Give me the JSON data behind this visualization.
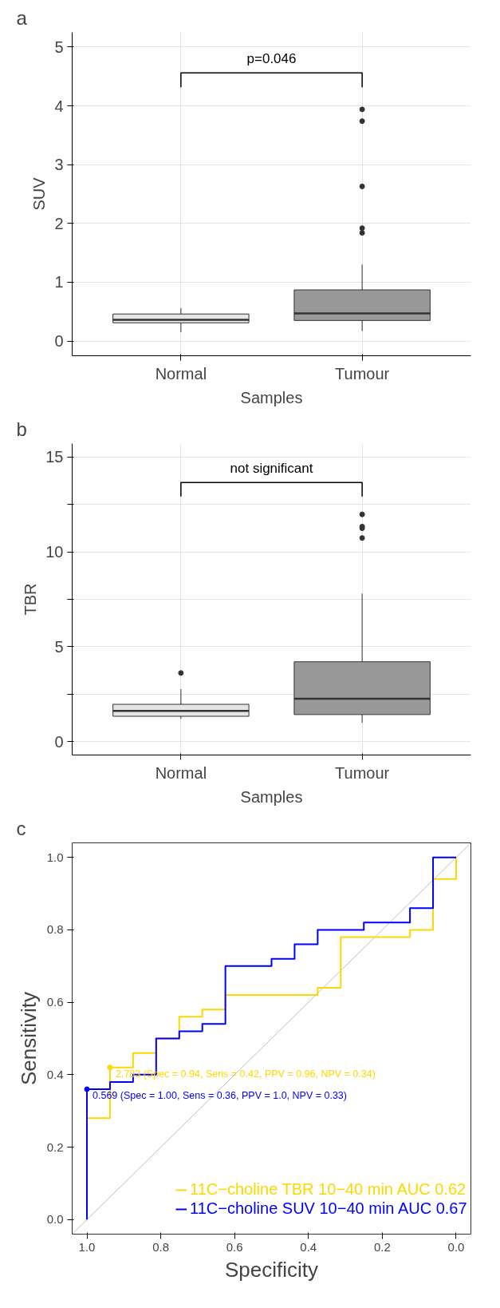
{
  "chart_data": [
    {
      "type": "box",
      "title": "a",
      "xlabel": "Samples",
      "ylabel": "SUV",
      "categories": [
        "Normal",
        "Tumour"
      ],
      "colors": [
        "#e5e5e5",
        "#999999"
      ],
      "boxes": [
        {
          "low": 0.15,
          "q1": 0.31,
          "median": 0.36,
          "q3": 0.46,
          "high": 0.56
        },
        {
          "low": 0.17,
          "q1": 0.35,
          "median": 0.47,
          "q3": 0.87,
          "high": 1.3,
          "outliers": [
            1.84,
            1.92,
            2.63,
            3.74,
            3.94
          ]
        }
      ],
      "ylim": [
        -0.25,
        5.25
      ],
      "yticks": [
        0,
        1,
        2,
        3,
        4,
        5
      ],
      "grid": true,
      "annotations": [
        "p=0.046"
      ]
    },
    {
      "type": "box",
      "title": "b",
      "xlabel": "Samples",
      "ylabel": "TBR",
      "categories": [
        "Normal",
        "Tumour"
      ],
      "colors": [
        "#e5e5e5",
        "#999999"
      ],
      "boxes": [
        {
          "low": 1.21,
          "q1": 1.34,
          "median": 1.62,
          "q3": 1.97,
          "high": 2.77,
          "outliers": [
            3.62
          ]
        },
        {
          "low": 1.0,
          "q1": 1.43,
          "median": 2.26,
          "q3": 4.21,
          "high": 7.8,
          "outliers": [
            10.73,
            11.24,
            11.33,
            11.97
          ]
        }
      ],
      "ylim": [
        -0.7,
        15.7
      ],
      "yticks": [
        0,
        {
          "value": 2.5,
          "label": null
        },
        5,
        {
          "value": 7.5,
          "label": null
        },
        10,
        {
          "value": 12.5,
          "label": null
        },
        15
      ],
      "grid": true,
      "annotations": [
        "not significant"
      ]
    },
    {
      "type": "line",
      "title": "c",
      "xlabel": "Specificity",
      "ylabel": "Sensitivity",
      "xlim": [
        1.04,
        -0.04
      ],
      "ylim": [
        -0.04,
        1.04
      ],
      "xticks": [
        {
          "value": 1,
          "label": "1.0"
        },
        {
          "value": 0.8,
          "label": "0.8"
        },
        {
          "value": 0.6,
          "label": "0.6"
        },
        {
          "value": 0.4,
          "label": "0.4"
        },
        {
          "value": 0.2,
          "label": "0.2"
        },
        {
          "value": 0,
          "label": "0.0"
        }
      ],
      "yticks": [
        {
          "value": 0,
          "label": "0.0"
        },
        {
          "value": 0.2,
          "label": "0.2"
        },
        {
          "value": 0.4,
          "label": "0.4"
        },
        {
          "value": 0.6,
          "label": "0.6"
        },
        {
          "value": 0.8,
          "label": "0.8"
        },
        {
          "value": 1,
          "label": "1.0"
        }
      ],
      "legend": "bottom right",
      "grid": false,
      "series": [
        {
          "type": "line",
          "color": "#bebebe",
          "x": [
            1.04,
            -0.04
          ],
          "values": [
            -0.04,
            1.04
          ]
        },
        {
          "type": "line",
          "name": "11C−choline TBR 10−40 min AUC 0.62",
          "color": "#ffd700",
          "x": [
            1,
            1,
            0.9375,
            0.9375,
            0.875,
            0.875,
            0.8125,
            0.8125,
            0.75,
            0.75,
            0.6875,
            0.6875,
            0.625,
            0.625,
            0.375,
            0.375,
            0.3125,
            0.3125,
            0.125,
            0.125,
            0.0625,
            0.0625,
            0,
            0
          ],
          "values": [
            0,
            0.28,
            0.28,
            0.42,
            0.42,
            0.46,
            0.46,
            0.5,
            0.5,
            0.56,
            0.56,
            0.58,
            0.58,
            0.62,
            0.62,
            0.64,
            0.64,
            0.78,
            0.78,
            0.8,
            0.8,
            0.94,
            0.94,
            1.0
          ]
        },
        {
          "type": "line",
          "name": "11C−choline SUV 10−40 min AUC 0.67",
          "color": "#0000ff",
          "x": [
            1,
            1,
            0.9375,
            0.9375,
            0.875,
            0.875,
            0.8125,
            0.8125,
            0.75,
            0.75,
            0.6875,
            0.6875,
            0.625,
            0.625,
            0.5,
            0.5,
            0.4375,
            0.4375,
            0.375,
            0.375,
            0.25,
            0.25,
            0.125,
            0.125,
            0.0625,
            0.0625,
            0
          ],
          "values": [
            0,
            0.36,
            0.36,
            0.38,
            0.38,
            0.4,
            0.4,
            0.5,
            0.5,
            0.52,
            0.52,
            0.54,
            0.54,
            0.7,
            0.7,
            0.72,
            0.72,
            0.76,
            0.76,
            0.8,
            0.8,
            0.82,
            0.82,
            0.86,
            0.86,
            1.0,
            1.0
          ]
        },
        {
          "type": "scatter",
          "name": "2.783 (Spec = 0.94, Sens = 0.42, PPV = 0.96, NPV = 0.34)",
          "color": "#ffd700",
          "x": [
            0.9375
          ],
          "values": [
            0.42
          ]
        },
        {
          "type": "scatter",
          "name": "0.569 (Spec = 1.00, Sens = 0.36, PPV = 1.0, NPV = 0.33)",
          "color": "#0000ff",
          "x": [
            1
          ],
          "values": [
            0.36
          ]
        }
      ]
    }
  ]
}
